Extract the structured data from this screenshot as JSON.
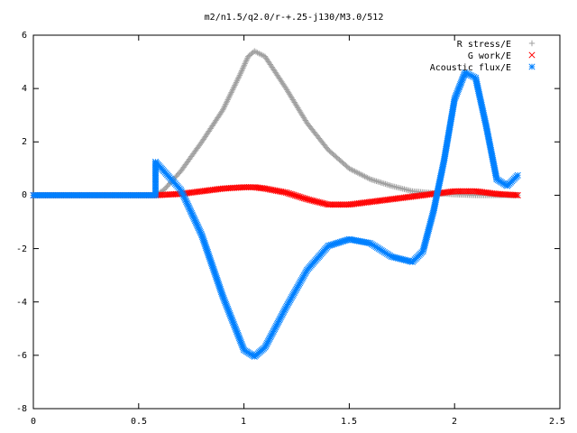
{
  "chart_data": {
    "type": "scatter",
    "title": "m2/n1.5/q2.0/r-+.25-j130/M3.0/512",
    "xlabel": "",
    "ylabel": "",
    "xlim": [
      0,
      2.5
    ],
    "ylim": [
      -8,
      6
    ],
    "xticks": [
      "0",
      "0.5",
      "1",
      "1.5",
      "2",
      "2.5"
    ],
    "yticks": [
      "-8",
      "-6",
      "-4",
      "-2",
      "0",
      "2",
      "4",
      "6"
    ],
    "grid": false,
    "legend_position": "top-right",
    "series": [
      {
        "name": "R stress/E",
        "color": "#a0a0a0",
        "marker": "plus",
        "points": [
          [
            0,
            0
          ],
          [
            0.58,
            0
          ],
          [
            0.62,
            0.2
          ],
          [
            0.7,
            0.9
          ],
          [
            0.8,
            2.0
          ],
          [
            0.9,
            3.2
          ],
          [
            0.98,
            4.5
          ],
          [
            1.02,
            5.2
          ],
          [
            1.05,
            5.4
          ],
          [
            1.1,
            5.2
          ],
          [
            1.2,
            4.0
          ],
          [
            1.3,
            2.7
          ],
          [
            1.4,
            1.7
          ],
          [
            1.5,
            1.0
          ],
          [
            1.6,
            0.6
          ],
          [
            1.7,
            0.35
          ],
          [
            1.8,
            0.15
          ],
          [
            1.9,
            0.08
          ],
          [
            2.0,
            0.03
          ],
          [
            2.1,
            0.0
          ],
          [
            2.2,
            0.0
          ],
          [
            2.3,
            0.0
          ]
        ]
      },
      {
        "name": "G work/E",
        "color": "#ff0000",
        "marker": "cross",
        "points": [
          [
            0,
            0
          ],
          [
            0.58,
            0
          ],
          [
            0.7,
            0.05
          ],
          [
            0.8,
            0.15
          ],
          [
            0.9,
            0.25
          ],
          [
            1.0,
            0.3
          ],
          [
            1.05,
            0.3
          ],
          [
            1.1,
            0.25
          ],
          [
            1.2,
            0.1
          ],
          [
            1.3,
            -0.15
          ],
          [
            1.4,
            -0.35
          ],
          [
            1.5,
            -0.35
          ],
          [
            1.6,
            -0.25
          ],
          [
            1.7,
            -0.15
          ],
          [
            1.8,
            -0.05
          ],
          [
            1.9,
            0.05
          ],
          [
            2.0,
            0.15
          ],
          [
            2.1,
            0.15
          ],
          [
            2.2,
            0.05
          ],
          [
            2.3,
            0.0
          ]
        ]
      },
      {
        "name": "Acoustic flux/E",
        "color": "#0080ff",
        "marker": "star",
        "points": [
          [
            0,
            0
          ],
          [
            0.58,
            0
          ],
          [
            0.58,
            1.25
          ],
          [
            0.62,
            0.9
          ],
          [
            0.7,
            0.2
          ],
          [
            0.8,
            -1.5
          ],
          [
            0.9,
            -3.8
          ],
          [
            1.0,
            -5.8
          ],
          [
            1.05,
            -6.05
          ],
          [
            1.1,
            -5.7
          ],
          [
            1.2,
            -4.2
          ],
          [
            1.3,
            -2.8
          ],
          [
            1.4,
            -1.9
          ],
          [
            1.5,
            -1.65
          ],
          [
            1.6,
            -1.8
          ],
          [
            1.7,
            -2.3
          ],
          [
            1.8,
            -2.5
          ],
          [
            1.85,
            -2.1
          ],
          [
            1.9,
            -0.6
          ],
          [
            1.95,
            1.3
          ],
          [
            2.0,
            3.6
          ],
          [
            2.05,
            4.6
          ],
          [
            2.1,
            4.4
          ],
          [
            2.15,
            2.6
          ],
          [
            2.2,
            0.6
          ],
          [
            2.25,
            0.35
          ],
          [
            2.3,
            0.75
          ]
        ]
      }
    ]
  }
}
